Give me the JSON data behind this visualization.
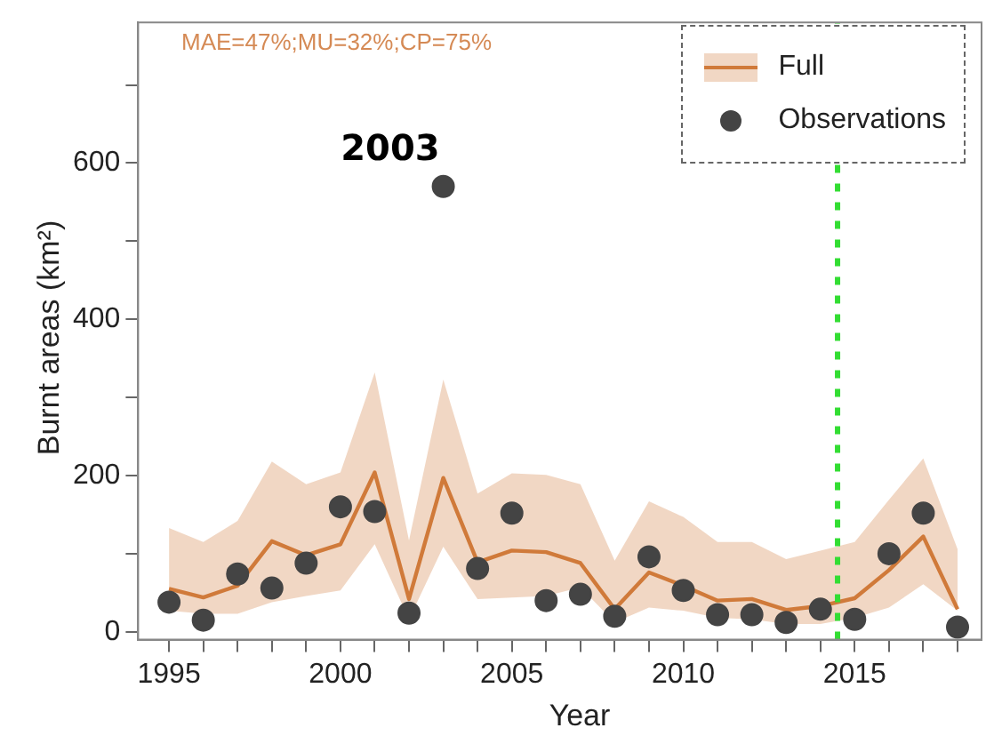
{
  "chart_data": {
    "type": "line",
    "xlabel": "Year",
    "ylabel": "Burnt areas (km²)",
    "x": [
      1995,
      1996,
      1997,
      1998,
      1999,
      2000,
      2001,
      2002,
      2003,
      2004,
      2005,
      2006,
      2007,
      2008,
      2009,
      2010,
      2011,
      2012,
      2013,
      2014,
      2015,
      2016,
      2017,
      2018
    ],
    "series": [
      {
        "name": "Full",
        "color": "#d07a3a",
        "values": [
          55,
          44,
          59,
          116,
          98,
          112,
          204,
          42,
          197,
          89,
          104,
          102,
          88,
          29,
          76,
          59,
          40,
          42,
          28,
          33,
          43,
          79,
          122,
          29
        ],
        "lower": [
          27,
          23,
          23,
          38,
          46,
          53,
          112,
          16,
          109,
          42,
          44,
          46,
          57,
          12,
          31,
          27,
          18,
          16,
          10,
          10,
          18,
          31,
          61,
          27
        ],
        "upper": [
          133,
          115,
          142,
          218,
          189,
          204,
          332,
          117,
          323,
          177,
          203,
          201,
          189,
          91,
          167,
          147,
          115,
          115,
          93,
          104,
          115,
          169,
          222,
          106
        ]
      },
      {
        "name": "Observations",
        "type": "scatter",
        "color": "#444444",
        "marker": "circle",
        "values": [
          38,
          15,
          74,
          56,
          88,
          160,
          154,
          24,
          570,
          81,
          152,
          40,
          48,
          20,
          96,
          53,
          22,
          22,
          12,
          29,
          16,
          100,
          152,
          6
        ]
      }
    ],
    "xlim": [
      1994.1,
      2018.7
    ],
    "xticks": [
      1995,
      {
        "value": 1996,
        "label": null
      },
      {
        "value": 1997,
        "label": null
      },
      {
        "value": 1998,
        "label": null
      },
      {
        "value": 1999,
        "label": null
      },
      2000,
      {
        "value": 2001,
        "label": null
      },
      {
        "value": 2002,
        "label": null
      },
      {
        "value": 2003,
        "label": null
      },
      {
        "value": 2004,
        "label": null
      },
      2005,
      {
        "value": 2006,
        "label": null
      },
      {
        "value": 2007,
        "label": null
      },
      {
        "value": 2008,
        "label": null
      },
      {
        "value": 2009,
        "label": null
      },
      2010,
      {
        "value": 2011,
        "label": null
      },
      {
        "value": 2012,
        "label": null
      },
      {
        "value": 2013,
        "label": null
      },
      {
        "value": 2014,
        "label": null
      },
      2015,
      {
        "value": 2016,
        "label": null
      },
      {
        "value": 2017,
        "label": null
      },
      {
        "value": 2018,
        "label": null
      }
    ],
    "ylim": [
      -10,
      780
    ],
    "yticks": [
      0,
      {
        "value": 100,
        "label": null
      },
      200,
      {
        "value": 300,
        "label": null
      },
      400,
      {
        "value": 500,
        "label": null
      },
      600,
      {
        "value": 700,
        "label": null
      }
    ],
    "grid": false,
    "legend": "top right",
    "ref_lines": [
      {
        "axis": "x",
        "value": 2014.5,
        "label": null,
        "color": "#33dd33",
        "line_style": "dotted"
      }
    ],
    "annotations": [
      "MAE=47%;MU=32%;CP=75%",
      {
        "text": "2003",
        "x": 2003,
        "y": 570
      }
    ]
  }
}
